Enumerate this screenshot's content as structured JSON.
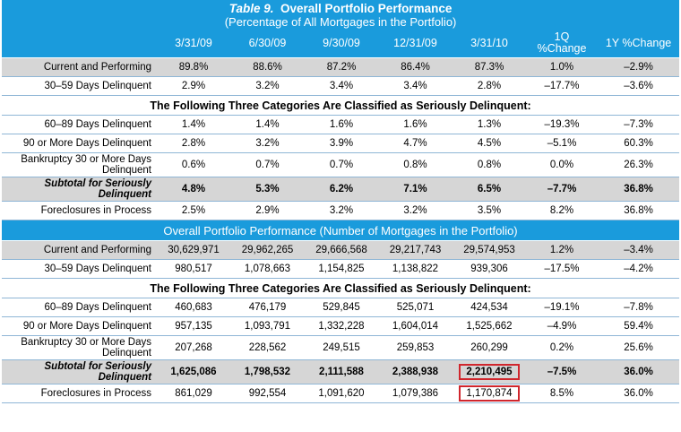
{
  "title": {
    "line1_prefix": "Table 9.",
    "line1_rest": "Overall Portfolio Performance",
    "line2": "(Percentage of All Mortgages in the Portfolio)"
  },
  "columns": [
    "3/31/09",
    "6/30/09",
    "9/30/09",
    "12/31/09",
    "3/31/10",
    "1Q %Change",
    "1Y %Change"
  ],
  "banner_text": "The Following Three Categories Are Classified as Seriously Delinquent:",
  "section2_title": "Overall Portfolio Performance (Number of Mortgages in the Portfolio)",
  "section1": {
    "rows_a": [
      {
        "label": "Current and Performing",
        "values": [
          "89.8%",
          "88.6%",
          "87.2%",
          "86.4%",
          "87.3%",
          "1.0%",
          "–2.9%"
        ]
      },
      {
        "label": "30–59 Days Delinquent",
        "values": [
          "2.9%",
          "3.2%",
          "3.4%",
          "3.4%",
          "2.8%",
          "–17.7%",
          "–3.6%"
        ]
      }
    ],
    "rows_b": [
      {
        "label": "60–89 Days Delinquent",
        "values": [
          "1.4%",
          "1.4%",
          "1.6%",
          "1.6%",
          "1.3%",
          "–19.3%",
          "–7.3%"
        ]
      },
      {
        "label": "90 or More Days Delinquent",
        "values": [
          "2.8%",
          "3.2%",
          "3.9%",
          "4.7%",
          "4.5%",
          "–5.1%",
          "60.3%"
        ]
      },
      {
        "label": "Bankruptcy 30 or More Days Delinquent",
        "values": [
          "0.6%",
          "0.7%",
          "0.7%",
          "0.8%",
          "0.8%",
          "0.0%",
          "26.3%"
        ]
      },
      {
        "label": "Subtotal for Seriously Delinquent",
        "values": [
          "4.8%",
          "5.3%",
          "6.2%",
          "7.1%",
          "6.5%",
          "–7.7%",
          "36.8%"
        ]
      },
      {
        "label": "Foreclosures in Process",
        "values": [
          "2.5%",
          "2.9%",
          "3.2%",
          "3.2%",
          "3.5%",
          "8.2%",
          "36.8%"
        ]
      }
    ]
  },
  "section2": {
    "rows_a": [
      {
        "label": "Current and Performing",
        "values": [
          "30,629,971",
          "29,962,265",
          "29,666,568",
          "29,217,743",
          "29,574,953",
          "1.2%",
          "–3.4%"
        ]
      },
      {
        "label": "30–59 Days Delinquent",
        "values": [
          "980,517",
          "1,078,663",
          "1,154,825",
          "1,138,822",
          "939,306",
          "–17.5%",
          "–4.2%"
        ]
      }
    ],
    "rows_b": [
      {
        "label": "60–89 Days Delinquent",
        "values": [
          "460,683",
          "476,179",
          "529,845",
          "525,071",
          "424,534",
          "–19.1%",
          "–7.8%"
        ]
      },
      {
        "label": "90 or More Days Delinquent",
        "values": [
          "957,135",
          "1,093,791",
          "1,332,228",
          "1,604,014",
          "1,525,662",
          "–4.9%",
          "59.4%"
        ]
      },
      {
        "label": "Bankruptcy 30 or More Days Delinquent",
        "values": [
          "207,268",
          "228,562",
          "249,515",
          "259,853",
          "260,299",
          "0.2%",
          "25.6%"
        ]
      },
      {
        "label": "Subtotal for Seriously Delinquent",
        "values": [
          "1,625,086",
          "1,798,532",
          "2,111,588",
          "2,388,938",
          "2,210,495",
          "–7.5%",
          "36.0%"
        ]
      },
      {
        "label": "Foreclosures in Process",
        "values": [
          "861,029",
          "992,554",
          "1,091,620",
          "1,079,386",
          "1,170,874",
          "8.5%",
          "36.0%"
        ]
      }
    ]
  },
  "colors": {
    "header_blue": "#1a9bdc",
    "shade_gray": "#d6d6d6",
    "highlight_red": "#d0262d"
  }
}
